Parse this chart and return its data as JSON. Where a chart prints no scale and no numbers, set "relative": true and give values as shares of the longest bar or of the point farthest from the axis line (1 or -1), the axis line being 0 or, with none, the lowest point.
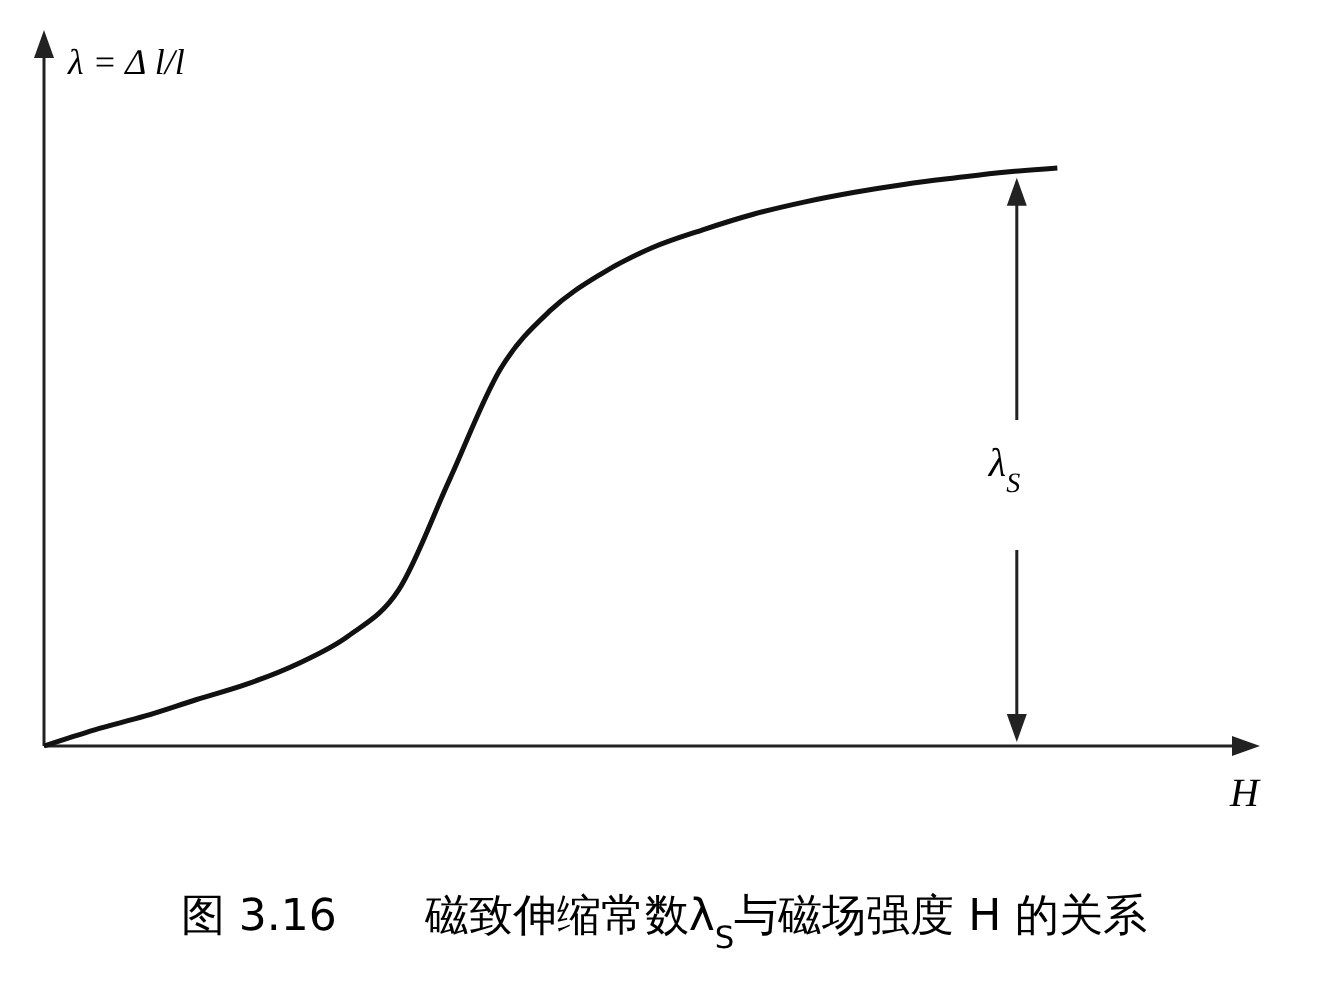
{
  "chart_data": {
    "type": "line",
    "relative": true,
    "title": "图 3.16　　磁致伸缩常数λ$_{S}$与磁场强度 H 的关系",
    "xlabel": "H",
    "ylabel": "λ = Δ l/l",
    "annotations": [
      "λ$_{S}$"
    ],
    "color": "#111111",
    "marker": "none",
    "line_style": "solid",
    "categories": [
      null,
      null,
      null,
      null,
      null,
      null,
      null,
      null,
      null,
      null,
      null,
      null,
      null,
      null,
      null,
      null,
      null,
      null,
      null,
      null,
      null,
      null,
      null,
      null
    ],
    "values": [
      0,
      0.028,
      0.052,
      0.08,
      0.107,
      0.142,
      0.19,
      0.27,
      0.46,
      0.651,
      0.754,
      0.817,
      0.862,
      0.893,
      0.92,
      0.941,
      0.958,
      0.972,
      0.983,
      0.993,
      1,
      null,
      null,
      null
    ]
  }
}
